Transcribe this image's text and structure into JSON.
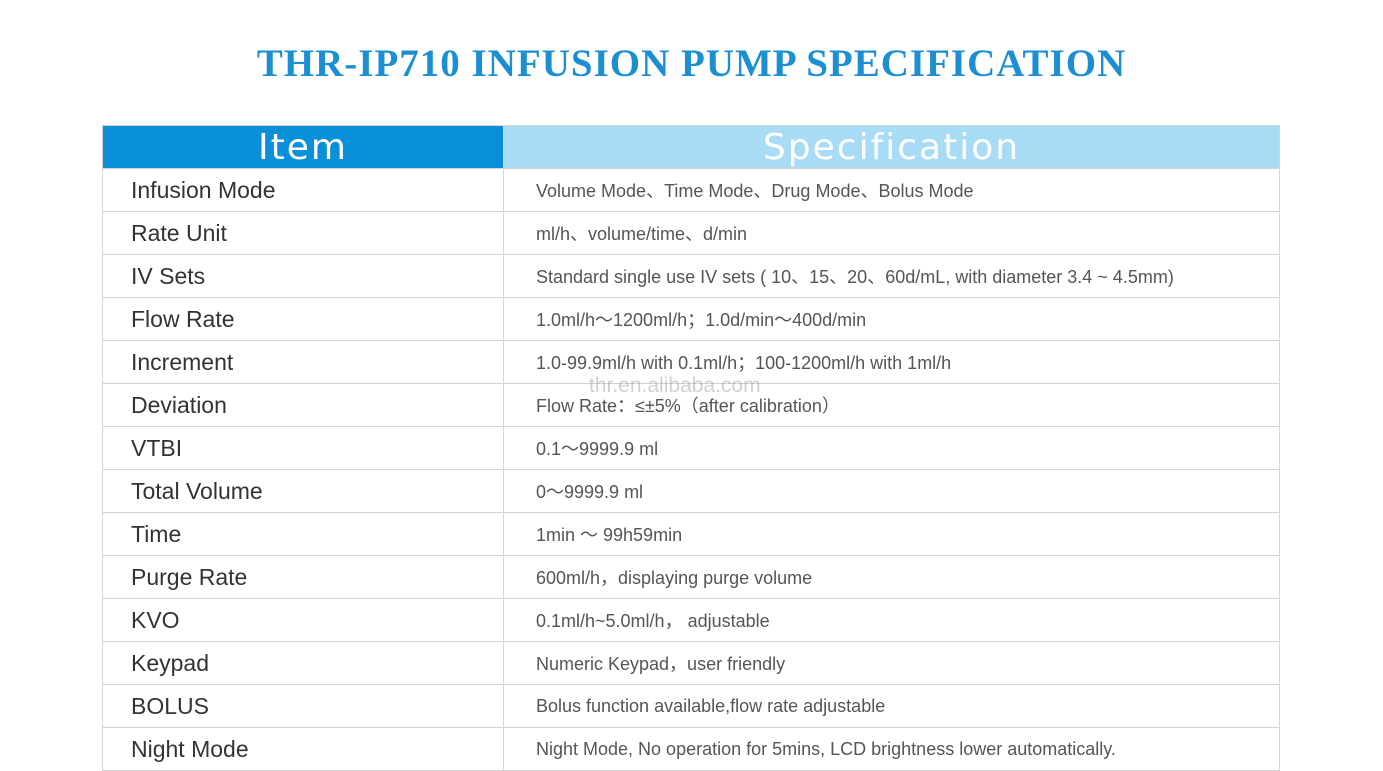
{
  "title": "THR-IP710 INFUSION PUMP SPECIFICATION",
  "table": {
    "headers": {
      "item": "Item",
      "spec": "Specification"
    },
    "rows": [
      {
        "item": "Infusion Mode",
        "spec": "Volume Mode、Time Mode、Drug  Mode、Bolus Mode"
      },
      {
        "item": "Rate Unit",
        "spec": "ml/h、volume/time、d/min"
      },
      {
        "item": "IV Sets",
        "spec": "Standard single use IV sets ( 10、15、20、60d/mL, with diameter 3.4 ~ 4.5mm)"
      },
      {
        "item": "Flow Rate",
        "spec": "1.0ml/h～1200ml/h；1.0d/min～400d/min"
      },
      {
        "item": "Increment",
        "spec": "1.0-99.9ml/h with 0.1ml/h；100-1200ml/h with 1ml/h"
      },
      {
        "item": "Deviation",
        "spec": "Flow Rate：≤±5%（after calibration）"
      },
      {
        "item": "VTBI",
        "spec": "0.1～9999.9 ml"
      },
      {
        "item": "Total Volume",
        "spec": "0～9999.9 ml"
      },
      {
        "item": "Time",
        "spec": "1min ～ 99h59min"
      },
      {
        "item": "Purge Rate",
        "spec": "600ml/h，displaying purge volume"
      },
      {
        "item": "KVO",
        "spec": "0.1ml/h~5.0ml/h， adjustable"
      },
      {
        "item": "Keypad",
        "spec": "Numeric Keypad，user friendly"
      },
      {
        "item": "BOLUS",
        "spec": "Bolus function available,flow rate adjustable"
      },
      {
        "item": "Night Mode",
        "spec": "Night Mode, No operation for 5mins, LCD brightness lower automatically."
      }
    ]
  },
  "watermark": "thr.en.alibaba.com",
  "colors": {
    "title": "#1b8fd2",
    "header_item_bg": "#0a8fd9",
    "header_spec_bg": "#a7dbf6",
    "border": "#d4d4d4"
  }
}
